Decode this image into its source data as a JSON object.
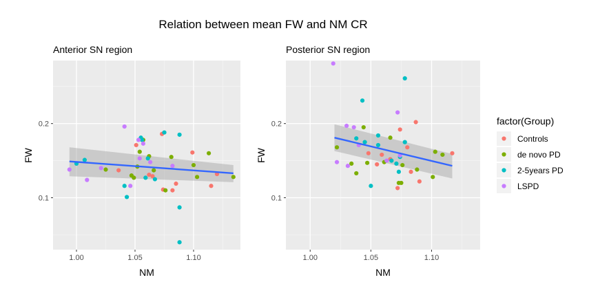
{
  "chart_data": {
    "title": "Relation between mean FW and NM CR",
    "type": "scatter",
    "legend": {
      "title": "factor(Group)",
      "placement": "right",
      "groups": [
        {
          "name": "Controls",
          "color": "#F8766D"
        },
        {
          "name": "de novo PD",
          "color": "#7CAE00"
        },
        {
          "name": "2-5years PD",
          "color": "#00BFC4"
        },
        {
          "name": "LSPD",
          "color": "#C77CFF"
        }
      ]
    },
    "panels": [
      {
        "subtitle": "Anterior SN region",
        "xlabel": "NM",
        "ylabel": "FW",
        "xlim": [
          0.98,
          1.14
        ],
        "ylim": [
          0.03,
          0.285
        ],
        "xticks": [
          1.0,
          1.05,
          1.1
        ],
        "xtick_labels": [
          "1.00",
          "1.05",
          "1.10"
        ],
        "yticks": [
          0.1,
          0.2
        ],
        "ytick_labels": [
          "0.1",
          "0.2"
        ],
        "fit": {
          "x": [
            0.994,
            1.134
          ],
          "y": [
            0.149,
            0.133
          ],
          "ci_upper": [
            0.168,
            0.144
          ],
          "ci_lower": [
            0.129,
            0.121
          ]
        },
        "points": [
          {
            "x": 1.051,
            "y": 0.171,
            "group": "Controls"
          },
          {
            "x": 1.073,
            "y": 0.186,
            "group": "Controls"
          },
          {
            "x": 1.062,
            "y": 0.131,
            "group": "Controls"
          },
          {
            "x": 1.065,
            "y": 0.129,
            "group": "Controls"
          },
          {
            "x": 1.074,
            "y": 0.111,
            "group": "Controls"
          },
          {
            "x": 1.082,
            "y": 0.11,
            "group": "Controls"
          },
          {
            "x": 1.085,
            "y": 0.119,
            "group": "Controls"
          },
          {
            "x": 1.099,
            "y": 0.161,
            "group": "Controls"
          },
          {
            "x": 1.115,
            "y": 0.116,
            "group": "Controls"
          },
          {
            "x": 1.12,
            "y": 0.132,
            "group": "Controls"
          },
          {
            "x": 1.036,
            "y": 0.137,
            "group": "Controls"
          },
          {
            "x": 1.025,
            "y": 0.138,
            "group": "de novo PD"
          },
          {
            "x": 1.047,
            "y": 0.13,
            "group": "de novo PD"
          },
          {
            "x": 1.049,
            "y": 0.127,
            "group": "de novo PD"
          },
          {
            "x": 1.052,
            "y": 0.142,
            "group": "de novo PD"
          },
          {
            "x": 1.054,
            "y": 0.162,
            "group": "de novo PD"
          },
          {
            "x": 1.057,
            "y": 0.178,
            "group": "de novo PD"
          },
          {
            "x": 1.062,
            "y": 0.156,
            "group": "de novo PD"
          },
          {
            "x": 1.066,
            "y": 0.137,
            "group": "de novo PD"
          },
          {
            "x": 1.076,
            "y": 0.11,
            "group": "de novo PD"
          },
          {
            "x": 1.081,
            "y": 0.155,
            "group": "de novo PD"
          },
          {
            "x": 1.1,
            "y": 0.144,
            "group": "de novo PD"
          },
          {
            "x": 1.103,
            "y": 0.128,
            "group": "de novo PD"
          },
          {
            "x": 1.113,
            "y": 0.16,
            "group": "de novo PD"
          },
          {
            "x": 1.134,
            "y": 0.128,
            "group": "de novo PD"
          },
          {
            "x": 1.0,
            "y": 0.146,
            "group": "2-5years PD"
          },
          {
            "x": 1.007,
            "y": 0.151,
            "group": "2-5years PD"
          },
          {
            "x": 1.041,
            "y": 0.116,
            "group": "2-5years PD"
          },
          {
            "x": 1.043,
            "y": 0.101,
            "group": "2-5years PD"
          },
          {
            "x": 1.055,
            "y": 0.181,
            "group": "2-5years PD"
          },
          {
            "x": 1.056,
            "y": 0.178,
            "group": "2-5years PD"
          },
          {
            "x": 1.059,
            "y": 0.127,
            "group": "2-5years PD"
          },
          {
            "x": 1.061,
            "y": 0.153,
            "group": "2-5years PD"
          },
          {
            "x": 1.067,
            "y": 0.125,
            "group": "2-5years PD"
          },
          {
            "x": 1.075,
            "y": 0.188,
            "group": "2-5years PD"
          },
          {
            "x": 1.088,
            "y": 0.185,
            "group": "2-5years PD"
          },
          {
            "x": 1.088,
            "y": 0.087,
            "group": "2-5years PD"
          },
          {
            "x": 1.088,
            "y": 0.04,
            "group": "2-5years PD"
          },
          {
            "x": 0.994,
            "y": 0.138,
            "group": "LSPD"
          },
          {
            "x": 1.009,
            "y": 0.124,
            "group": "LSPD"
          },
          {
            "x": 1.021,
            "y": 0.14,
            "group": "LSPD"
          },
          {
            "x": 1.041,
            "y": 0.196,
            "group": "LSPD"
          },
          {
            "x": 1.046,
            "y": 0.116,
            "group": "LSPD"
          },
          {
            "x": 1.053,
            "y": 0.178,
            "group": "LSPD"
          },
          {
            "x": 1.054,
            "y": 0.153,
            "group": "LSPD"
          },
          {
            "x": 1.057,
            "y": 0.173,
            "group": "LSPD"
          },
          {
            "x": 1.063,
            "y": 0.148,
            "group": "LSPD"
          },
          {
            "x": 1.082,
            "y": 0.143,
            "group": "LSPD"
          }
        ]
      },
      {
        "subtitle": "Posterior SN region",
        "xlabel": "NM",
        "ylabel": "FW",
        "xlim": [
          0.98,
          1.14
        ],
        "ylim": [
          0.03,
          0.285
        ],
        "xticks": [
          1.0,
          1.05,
          1.1
        ],
        "xtick_labels": [
          "1.00",
          "1.05",
          "1.10"
        ],
        "yticks": [
          0.1,
          0.2
        ],
        "ytick_labels": [
          "0.1",
          "0.2"
        ],
        "fit": {
          "x": [
            1.02,
            1.117
          ],
          "y": [
            0.181,
            0.143
          ],
          "ci_upper": [
            0.199,
            0.159
          ],
          "ci_lower": [
            0.163,
            0.126
          ]
        },
        "points": [
          {
            "x": 1.048,
            "y": 0.16,
            "group": "Controls"
          },
          {
            "x": 1.055,
            "y": 0.145,
            "group": "Controls"
          },
          {
            "x": 1.059,
            "y": 0.158,
            "group": "Controls"
          },
          {
            "x": 1.066,
            "y": 0.152,
            "group": "Controls"
          },
          {
            "x": 1.072,
            "y": 0.113,
            "group": "Controls"
          },
          {
            "x": 1.074,
            "y": 0.192,
            "group": "Controls"
          },
          {
            "x": 1.08,
            "y": 0.168,
            "group": "Controls"
          },
          {
            "x": 1.083,
            "y": 0.135,
            "group": "Controls"
          },
          {
            "x": 1.087,
            "y": 0.202,
            "group": "Controls"
          },
          {
            "x": 1.09,
            "y": 0.122,
            "group": "Controls"
          },
          {
            "x": 1.117,
            "y": 0.16,
            "group": "Controls"
          },
          {
            "x": 1.022,
            "y": 0.168,
            "group": "de novo PD"
          },
          {
            "x": 1.034,
            "y": 0.146,
            "group": "de novo PD"
          },
          {
            "x": 1.038,
            "y": 0.133,
            "group": "de novo PD"
          },
          {
            "x": 1.044,
            "y": 0.195,
            "group": "de novo PD"
          },
          {
            "x": 1.047,
            "y": 0.147,
            "group": "de novo PD"
          },
          {
            "x": 1.061,
            "y": 0.148,
            "group": "de novo PD"
          },
          {
            "x": 1.066,
            "y": 0.181,
            "group": "de novo PD"
          },
          {
            "x": 1.073,
            "y": 0.12,
            "group": "de novo PD"
          },
          {
            "x": 1.075,
            "y": 0.12,
            "group": "de novo PD"
          },
          {
            "x": 1.076,
            "y": 0.144,
            "group": "de novo PD"
          },
          {
            "x": 1.088,
            "y": 0.138,
            "group": "de novo PD"
          },
          {
            "x": 1.101,
            "y": 0.128,
            "group": "de novo PD"
          },
          {
            "x": 1.103,
            "y": 0.162,
            "group": "de novo PD"
          },
          {
            "x": 1.109,
            "y": 0.158,
            "group": "de novo PD"
          },
          {
            "x": 1.038,
            "y": 0.18,
            "group": "2-5years PD"
          },
          {
            "x": 1.043,
            "y": 0.231,
            "group": "2-5years PD"
          },
          {
            "x": 1.045,
            "y": 0.175,
            "group": "2-5years PD"
          },
          {
            "x": 1.05,
            "y": 0.116,
            "group": "2-5years PD"
          },
          {
            "x": 1.056,
            "y": 0.184,
            "group": "2-5years PD"
          },
          {
            "x": 1.056,
            "y": 0.171,
            "group": "2-5years PD"
          },
          {
            "x": 1.067,
            "y": 0.15,
            "group": "2-5years PD"
          },
          {
            "x": 1.071,
            "y": 0.146,
            "group": "2-5years PD"
          },
          {
            "x": 1.073,
            "y": 0.135,
            "group": "2-5years PD"
          },
          {
            "x": 1.074,
            "y": 0.155,
            "group": "2-5years PD"
          },
          {
            "x": 1.078,
            "y": 0.175,
            "group": "2-5years PD"
          },
          {
            "x": 1.078,
            "y": 0.261,
            "group": "2-5years PD"
          },
          {
            "x": 1.019,
            "y": 0.281,
            "group": "LSPD"
          },
          {
            "x": 1.022,
            "y": 0.148,
            "group": "LSPD"
          },
          {
            "x": 1.03,
            "y": 0.197,
            "group": "LSPD"
          },
          {
            "x": 1.031,
            "y": 0.143,
            "group": "LSPD"
          },
          {
            "x": 1.036,
            "y": 0.195,
            "group": "LSPD"
          },
          {
            "x": 1.04,
            "y": 0.171,
            "group": "LSPD"
          },
          {
            "x": 1.063,
            "y": 0.15,
            "group": "LSPD"
          },
          {
            "x": 1.072,
            "y": 0.215,
            "group": "LSPD"
          },
          {
            "x": 1.074,
            "y": 0.157,
            "group": "LSPD"
          }
        ]
      }
    ]
  }
}
